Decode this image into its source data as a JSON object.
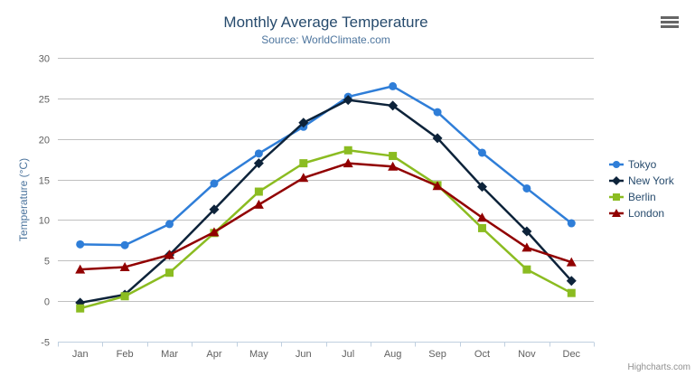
{
  "chart_data": {
    "type": "line",
    "title": "Monthly Average Temperature",
    "subtitle": "Source: WorldClimate.com",
    "xlabel": "",
    "ylabel": "Temperature (°C)",
    "categories": [
      "Jan",
      "Feb",
      "Mar",
      "Apr",
      "May",
      "Jun",
      "Jul",
      "Aug",
      "Sep",
      "Oct",
      "Nov",
      "Dec"
    ],
    "ylim": [
      -5,
      30
    ],
    "ytick_interval": 5,
    "grid": true,
    "legend_position": "right",
    "series": [
      {
        "name": "Tokyo",
        "color": "#2f7ed8",
        "marker": "circle",
        "values": [
          7.0,
          6.9,
          9.5,
          14.5,
          18.2,
          21.5,
          25.2,
          26.5,
          23.3,
          18.3,
          13.9,
          9.6
        ]
      },
      {
        "name": "New York",
        "color": "#0d233a",
        "marker": "diamond",
        "values": [
          -0.2,
          0.8,
          5.7,
          11.3,
          17.0,
          22.0,
          24.8,
          24.1,
          20.1,
          14.1,
          8.6,
          2.5
        ]
      },
      {
        "name": "Berlin",
        "color": "#8bbc21",
        "marker": "square",
        "values": [
          -0.9,
          0.6,
          3.5,
          8.4,
          13.5,
          17.0,
          18.6,
          17.9,
          14.3,
          9.0,
          3.9,
          1.0
        ]
      },
      {
        "name": "London",
        "color": "#910000",
        "marker": "triangle",
        "values": [
          3.9,
          4.2,
          5.7,
          8.5,
          11.9,
          15.2,
          17.0,
          16.6,
          14.2,
          10.3,
          6.6,
          4.8
        ]
      }
    ]
  },
  "colors": {
    "title": "#274b6d",
    "subtitle": "#4d759e",
    "axis_title": "#4d759e",
    "tick_label": "#606060",
    "gridline": "#c0c0c0",
    "axis_line": "#c0d0e0",
    "legend_text": "#274b6d",
    "credits": "#909090",
    "menu_icon": "#666666",
    "background": "#ffffff"
  },
  "export_menu": {
    "icon": "hamburger-icon"
  },
  "credits": {
    "label": "Highcharts.com"
  }
}
